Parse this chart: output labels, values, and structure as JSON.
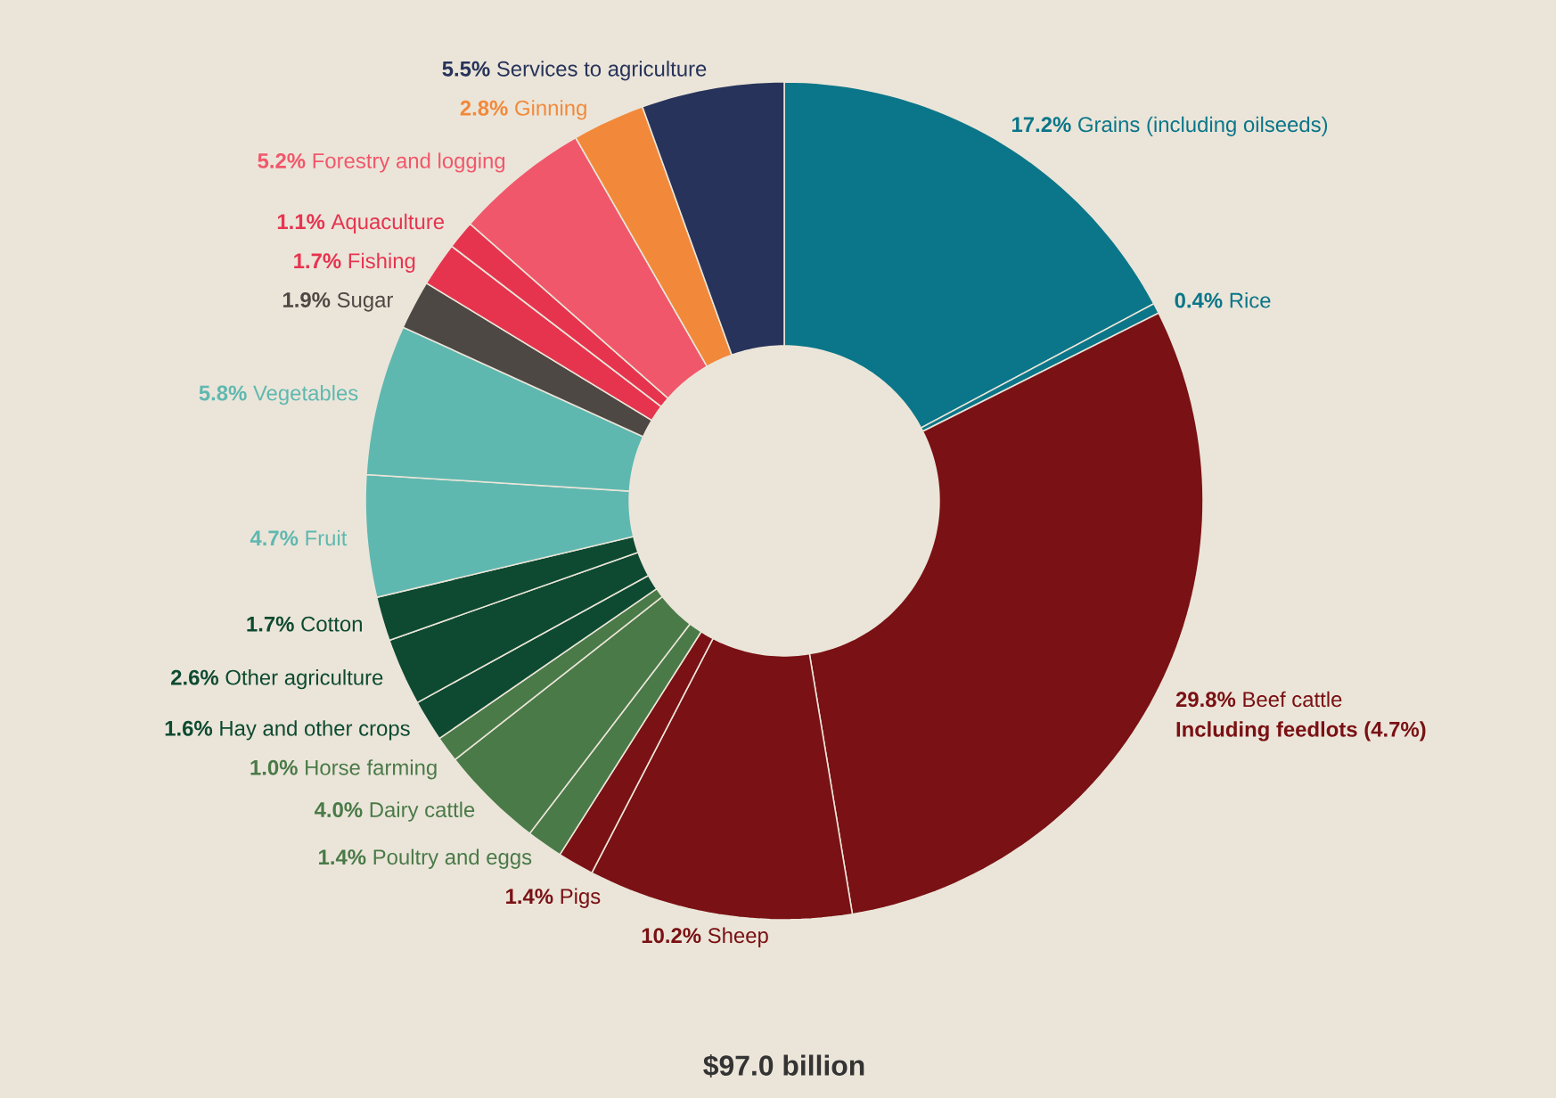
{
  "chart_data": {
    "type": "donut",
    "title": "$97.0 billion",
    "categories": [
      "Grains (including oilseeds)",
      "Rice",
      "Beef cattle",
      "Sheep",
      "Pigs",
      "Poultry and eggs",
      "Dairy cattle",
      "Horse farming",
      "Hay and other crops",
      "Other agriculture",
      "Cotton",
      "Fruit",
      "Vegetables",
      "Sugar",
      "Fishing",
      "Aquaculture",
      "Forestry and logging",
      "Ginning",
      "Services to agriculture"
    ],
    "values": [
      17.2,
      0.4,
      29.8,
      10.2,
      1.4,
      1.4,
      4.0,
      1.0,
      1.6,
      2.6,
      1.7,
      4.7,
      5.8,
      1.9,
      1.7,
      1.1,
      5.2,
      2.8,
      5.5
    ],
    "value_labels": [
      "17.2%",
      "0.4%",
      "29.8%",
      "10.2%",
      "1.4%",
      "1.4%",
      "4.0%",
      "1.0%",
      "1.6%",
      "2.6%",
      "1.7%",
      "4.7%",
      "5.8%",
      "1.9%",
      "1.7%",
      "1.1%",
      "5.2%",
      "2.8%",
      "5.5%"
    ],
    "colors": [
      "#0b7689",
      "#0b7689",
      "#7a1114",
      "#7a1114",
      "#7a1114",
      "#4a7a48",
      "#4a7a48",
      "#4a7a48",
      "#0d4a31",
      "#0d4a31",
      "#0d4a31",
      "#5fb8b0",
      "#5fb8b0",
      "#4e4844",
      "#e6344f",
      "#e6344f",
      "#f1576a",
      "#f2893a",
      "#27335a"
    ],
    "annotations": [
      "Including feedlots (4.7%)"
    ]
  }
}
